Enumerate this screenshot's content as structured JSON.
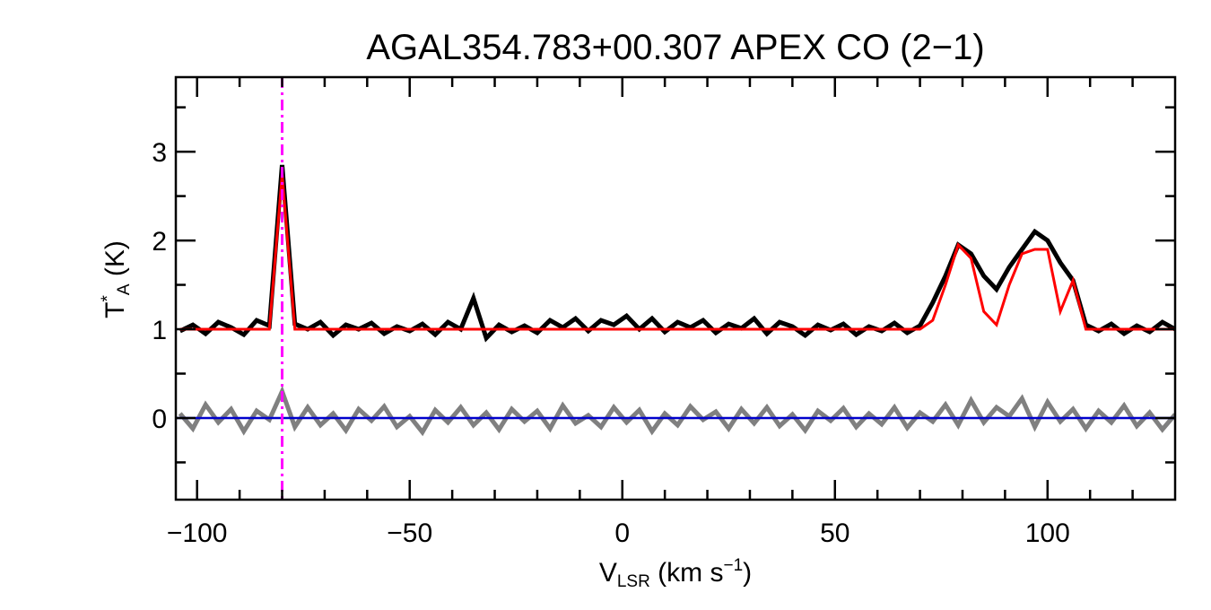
{
  "chart_data": {
    "type": "line",
    "title": "AGAL354.783+00.307  APEX CO (2−1)",
    "xlabel": [
      {
        "text": "V"
      },
      {
        "text": "LSR",
        "style": "sub"
      },
      {
        "text": " (km s"
      },
      {
        "text": "−1",
        "style": "sup"
      },
      {
        "text": ")"
      }
    ],
    "ylabel": [
      {
        "text": "T"
      },
      {
        "text": "*",
        "style": "sup"
      },
      {
        "text": "A",
        "style": "sub"
      },
      {
        "text": " (K)"
      }
    ],
    "xlim": [
      -105,
      130
    ],
    "ylim": [
      -0.92,
      3.84
    ],
    "xticks": [
      {
        "value": -100,
        "label": "−100"
      },
      {
        "value": -50,
        "label": "−50"
      },
      0,
      50,
      100
    ],
    "yticks": [
      0,
      1,
      2,
      3
    ],
    "xminorticks": [
      -90,
      -80,
      -70,
      -60,
      -40,
      -30,
      -20,
      -10,
      10,
      20,
      30,
      40,
      60,
      70,
      80,
      90,
      110,
      120
    ],
    "yminorticks": [
      -0.5,
      0.5,
      1.5,
      2.5,
      3.5
    ],
    "x": [
      -104,
      -101,
      -98,
      -95,
      -92,
      -89,
      -86,
      -83,
      -80,
      -77,
      -74,
      -71,
      -68,
      -65,
      -62,
      -59,
      -56,
      -53,
      -50,
      -47,
      -44,
      -41,
      -38,
      -35,
      -32,
      -29,
      -26,
      -23,
      -20,
      -17,
      -14,
      -11,
      -8,
      -5,
      -2,
      1,
      4,
      7,
      10,
      13,
      16,
      19,
      22,
      25,
      28,
      31,
      34,
      37,
      40,
      43,
      46,
      49,
      52,
      55,
      58,
      61,
      64,
      67,
      70,
      73,
      76,
      79,
      82,
      85,
      88,
      91,
      94,
      97,
      100,
      103,
      106,
      109,
      112,
      115,
      118,
      121,
      124,
      127,
      130
    ],
    "series": [
      {
        "color": "#808080",
        "width": 5,
        "values": [
          0.05,
          -0.12,
          0.15,
          -0.05,
          0.1,
          -0.15,
          0.08,
          -0.02,
          0.3,
          -0.1,
          0.12,
          -0.08,
          0.05,
          -0.14,
          0.1,
          -0.03,
          0.13,
          -0.1,
          0.02,
          -0.16,
          0.09,
          -0.05,
          0.12,
          -0.08,
          0.06,
          -0.13,
          0.1,
          -0.04,
          0.08,
          -0.12,
          0.14,
          -0.06,
          0.03,
          -0.1,
          0.12,
          -0.05,
          0.09,
          -0.15,
          0.05,
          -0.08,
          0.13,
          -0.02,
          0.07,
          -0.12,
          0.1,
          -0.06,
          0.12,
          -0.09,
          0.04,
          -0.14,
          0.08,
          -0.03,
          0.11,
          -0.1,
          0.05,
          -0.07,
          0.12,
          -0.11,
          0.06,
          -0.04,
          0.15,
          -0.08,
          0.2,
          -0.05,
          0.12,
          0.02,
          0.22,
          -0.1,
          0.18,
          -0.04,
          0.1,
          -0.12,
          0.08,
          -0.05,
          0.14,
          -0.09,
          0.06,
          -0.13,
          0.04
        ]
      },
      {
        "color": "#000000",
        "width": 5,
        "values": [
          0.98,
          1.05,
          0.95,
          1.08,
          1.02,
          0.94,
          1.1,
          1.04,
          2.85,
          1.06,
          1.0,
          1.08,
          0.93,
          1.05,
          1.0,
          1.07,
          0.95,
          1.03,
          0.98,
          1.06,
          0.94,
          1.08,
          1.0,
          1.35,
          0.9,
          1.05,
          0.97,
          1.04,
          0.96,
          1.1,
          1.02,
          1.12,
          0.98,
          1.1,
          1.05,
          1.15,
          1.0,
          1.12,
          0.97,
          1.08,
          1.02,
          1.1,
          0.96,
          1.06,
          1.01,
          1.12,
          0.95,
          1.08,
          1.03,
          0.93,
          1.05,
          0.99,
          1.06,
          0.94,
          1.03,
          0.98,
          1.07,
          0.96,
          1.04,
          1.3,
          1.6,
          1.95,
          1.85,
          1.6,
          1.45,
          1.7,
          1.9,
          2.1,
          2.0,
          1.75,
          1.55,
          1.05,
          0.98,
          1.06,
          0.95,
          1.04,
          0.97,
          1.08,
          1.0
        ]
      },
      {
        "color": "#ff0000",
        "width": 3,
        "values": [
          1,
          1,
          1,
          1,
          1,
          1,
          1,
          1,
          2.75,
          1,
          1,
          1,
          1,
          1,
          1,
          1,
          1,
          1,
          1,
          1,
          1,
          1,
          1,
          1,
          1,
          1,
          1,
          1,
          1,
          1,
          1,
          1,
          1,
          1,
          1,
          1,
          1,
          1,
          1,
          1,
          1,
          1,
          1,
          1,
          1,
          1,
          1,
          1,
          1,
          1,
          1,
          1,
          1,
          1,
          1,
          1,
          1,
          1,
          1,
          1.1,
          1.5,
          1.95,
          1.8,
          1.2,
          1.05,
          1.5,
          1.85,
          1.9,
          1.9,
          1.2,
          1.55,
          1,
          1,
          1,
          1,
          1,
          1,
          1,
          1
        ]
      }
    ],
    "baseline": {
      "value": 0,
      "color": "#0000cc"
    },
    "marker": {
      "x": -80,
      "color": "#ff00ff"
    }
  }
}
